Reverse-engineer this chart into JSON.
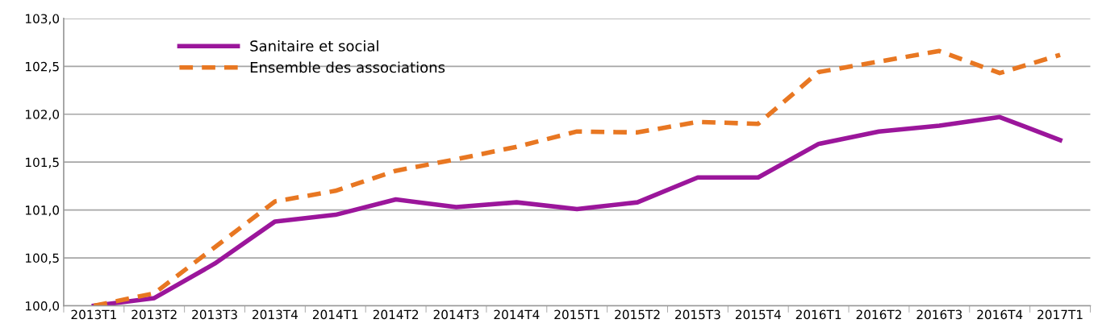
{
  "chart_data": {
    "type": "line",
    "categories": [
      "2013T1",
      "2013T2",
      "2013T3",
      "2013T4",
      "2014T1",
      "2014T2",
      "2014T3",
      "2014T4",
      "2015T1",
      "2015T2",
      "2015T3",
      "2015T4",
      "2016T1",
      "2016T2",
      "2016T3",
      "2016T4",
      "2017T1"
    ],
    "series": [
      {
        "name": "Sanitaire et social",
        "color": "#9b169b",
        "line_style": "solid",
        "values": [
          100.0,
          100.08,
          100.44,
          100.88,
          100.95,
          101.11,
          101.03,
          101.08,
          101.01,
          101.08,
          101.34,
          101.34,
          101.69,
          101.82,
          101.88,
          101.97,
          101.73
        ]
      },
      {
        "name": "Ensemble des associations",
        "color": "#e87722",
        "line_style": "dashed",
        "values": [
          100.0,
          100.13,
          100.61,
          101.09,
          101.2,
          101.41,
          101.53,
          101.66,
          101.82,
          101.81,
          101.92,
          101.9,
          102.44,
          102.55,
          102.66,
          102.43,
          102.62
        ]
      }
    ],
    "ylim": [
      100.0,
      103.0
    ],
    "yticks": [
      {
        "value": 100.0,
        "label": "100,0"
      },
      {
        "value": 100.5,
        "label": "100,5"
      },
      {
        "value": 101.0,
        "label": "101,0"
      },
      {
        "value": 101.5,
        "label": "101,5"
      },
      {
        "value": 102.0,
        "label": "102,0"
      },
      {
        "value": 102.5,
        "label": "102,5"
      },
      {
        "value": 103.0,
        "label": "103,0"
      }
    ],
    "grid": "y",
    "legend": "top left",
    "marker": "none"
  }
}
